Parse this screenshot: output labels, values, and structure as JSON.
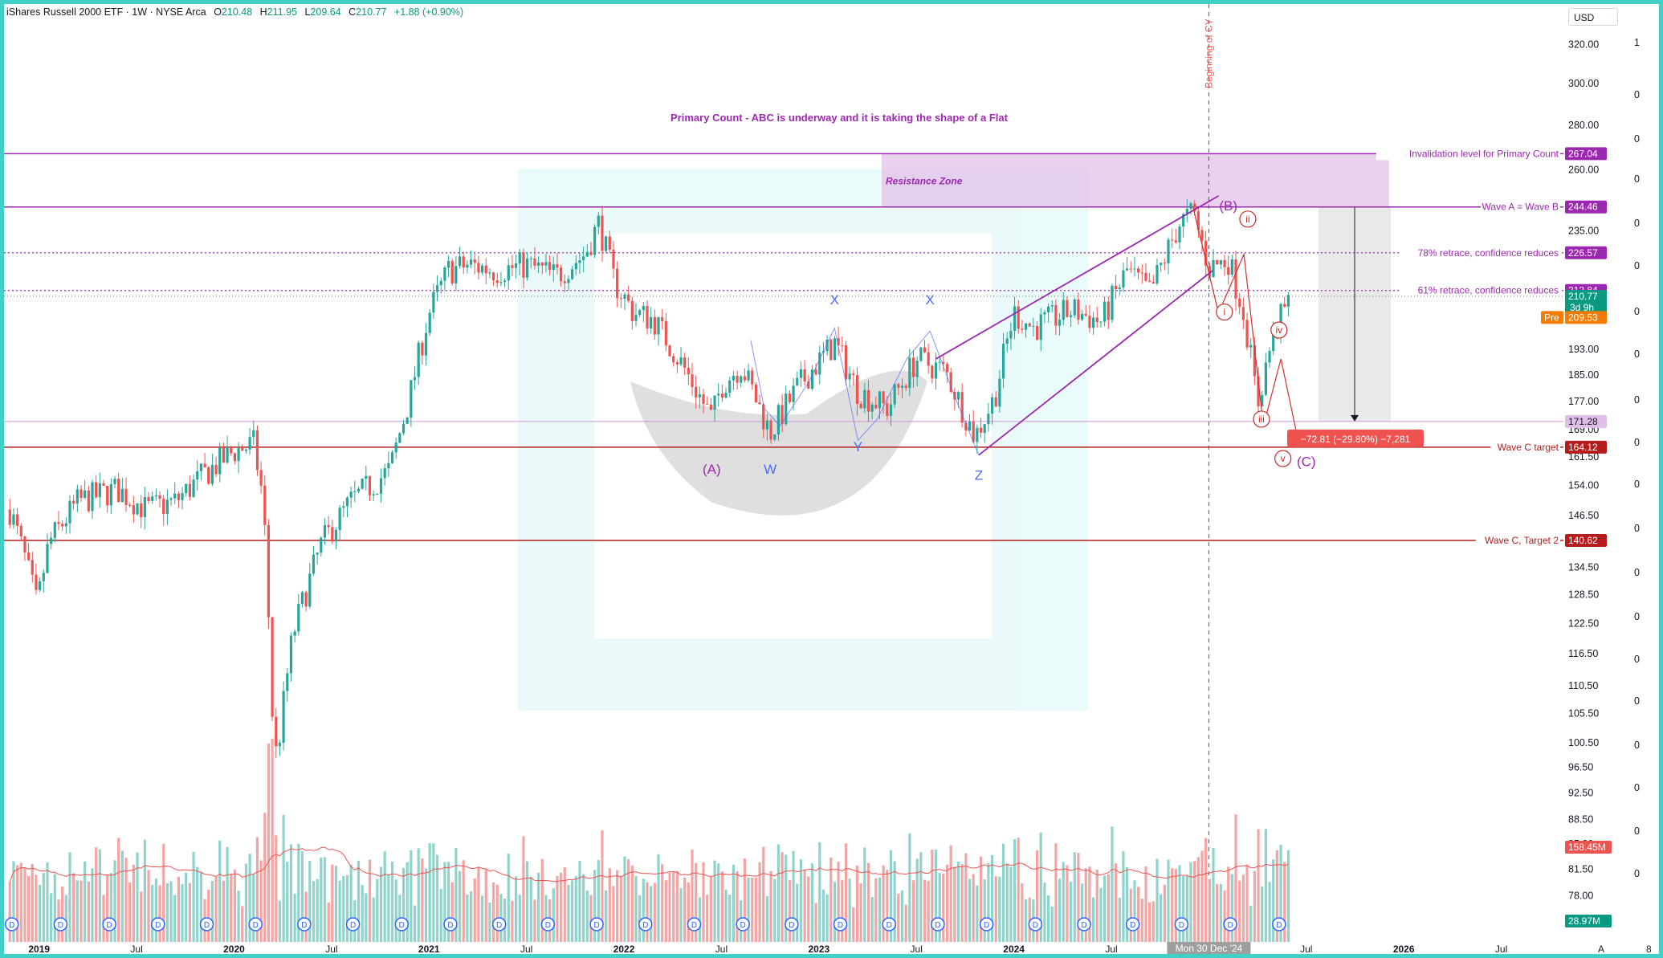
{
  "header": {
    "symbol": "iShares Russell 2000 ETF · 1W · NYSE Arca",
    "open_label": "O",
    "open": "210.48",
    "high_label": "H",
    "high": "211.95",
    "low_label": "L",
    "low": "209.64",
    "close_label": "C",
    "close": "210.77",
    "change": "+1.88 (+0.90%)",
    "currency": "USD"
  },
  "colors": {
    "up": "#26a69a",
    "down": "#ef5350",
    "purple": "#9c27b0",
    "resistance_fill": "#e1bee7",
    "dark_red": "#b71c1c",
    "blue_wave": "#4a6cf7"
  },
  "chart_data": {
    "type": "candlestick",
    "y_scale": "log",
    "ylim": [
      74,
      340
    ],
    "y_ticks": [
      "320.00",
      "300.00",
      "280.00",
      "260.00",
      "235.00",
      "193.00",
      "185.00",
      "177.00",
      "169.00",
      "161.50",
      "154.00",
      "146.50",
      "140.62",
      "134.50",
      "128.50",
      "122.50",
      "116.50",
      "110.50",
      "105.50",
      "100.50",
      "96.50",
      "92.50",
      "88.50",
      "85.00",
      "81.50",
      "78.00"
    ],
    "y_tick_values": [
      320,
      300,
      280,
      260,
      235,
      193,
      185,
      177,
      169,
      161.5,
      154,
      146.5,
      140.62,
      134.5,
      128.5,
      122.5,
      116.5,
      110.5,
      105.5,
      100.5,
      96.5,
      92.5,
      88.5,
      85,
      81.5,
      78
    ],
    "x_ticks": [
      {
        "label": "2019",
        "t": 2019.0,
        "year": true
      },
      {
        "label": "Jul",
        "t": 2019.5
      },
      {
        "label": "2020",
        "t": 2020.0,
        "year": true
      },
      {
        "label": "Jul",
        "t": 2020.5
      },
      {
        "label": "2021",
        "t": 2021.0,
        "year": true
      },
      {
        "label": "Jul",
        "t": 2021.5
      },
      {
        "label": "2022",
        "t": 2022.0,
        "year": true
      },
      {
        "label": "Jul",
        "t": 2022.5
      },
      {
        "label": "2023",
        "t": 2023.0,
        "year": true
      },
      {
        "label": "Jul",
        "t": 2023.5
      },
      {
        "label": "2024",
        "t": 2024.0,
        "year": true
      },
      {
        "label": "Jul",
        "t": 2024.5
      },
      {
        "label": "Jul",
        "t": 2025.5
      },
      {
        "label": "2026",
        "t": 2026.0,
        "year": true
      },
      {
        "label": "Jul",
        "t": 2026.5
      }
    ],
    "cursor_date": "Mon 30 Dec '24",
    "price_path": [
      [
        2018.85,
        148
      ],
      [
        2018.93,
        136
      ],
      [
        2018.99,
        126
      ],
      [
        2019.05,
        140
      ],
      [
        2019.2,
        150
      ],
      [
        2019.4,
        153
      ],
      [
        2019.55,
        148
      ],
      [
        2019.7,
        150
      ],
      [
        2019.85,
        157
      ],
      [
        2020.0,
        163
      ],
      [
        2020.1,
        165
      ],
      [
        2020.15,
        150
      ],
      [
        2020.2,
        102
      ],
      [
        2020.22,
        98
      ],
      [
        2020.3,
        120
      ],
      [
        2020.45,
        140
      ],
      [
        2020.6,
        150
      ],
      [
        2020.8,
        158
      ],
      [
        2020.9,
        178
      ],
      [
        2021.0,
        205
      ],
      [
        2021.1,
        220
      ],
      [
        2021.2,
        222
      ],
      [
        2021.35,
        220
      ],
      [
        2021.5,
        222
      ],
      [
        2021.65,
        218
      ],
      [
        2021.8,
        226
      ],
      [
        2021.87,
        238
      ],
      [
        2021.95,
        216
      ],
      [
        2022.05,
        205
      ],
      [
        2022.15,
        203
      ],
      [
        2022.3,
        188
      ],
      [
        2022.45,
        172
      ],
      [
        2022.5,
        182
      ],
      [
        2022.6,
        188
      ],
      [
        2022.75,
        168
      ],
      [
        2022.9,
        182
      ],
      [
        2023.08,
        195
      ],
      [
        2023.2,
        180
      ],
      [
        2023.35,
        175
      ],
      [
        2023.5,
        190
      ],
      [
        2023.65,
        186
      ],
      [
        2023.8,
        167
      ],
      [
        2023.9,
        178
      ],
      [
        2024.0,
        205
      ],
      [
        2024.1,
        200
      ],
      [
        2024.3,
        206
      ],
      [
        2024.45,
        202
      ],
      [
        2024.58,
        220
      ],
      [
        2024.7,
        212
      ],
      [
        2024.85,
        238
      ],
      [
        2024.92,
        242
      ],
      [
        2025.0,
        221
      ],
      [
        2025.1,
        224
      ],
      [
        2025.18,
        205
      ],
      [
        2025.25,
        176
      ],
      [
        2025.33,
        198
      ],
      [
        2025.42,
        210
      ]
    ],
    "volume_label": "158.45M",
    "volume_avg_label": "28.97M",
    "levels": [
      {
        "label": "Invalidation level for Primary Count",
        "value": "267.04",
        "price": 267.04,
        "color": "#9c27b0",
        "style": "solid"
      },
      {
        "label": "Wave A = Wave B",
        "value": "244.46",
        "price": 244.46,
        "color": "#9c27b0",
        "style": "solid"
      },
      {
        "label": "78% retrace, confidence reduces",
        "value": "226.57",
        "price": 226.57,
        "color": "#9c27b0",
        "style": "dotted"
      },
      {
        "label": "61% retrace, confidence reduces",
        "value": "212.84",
        "price": 212.84,
        "color": "#9c27b0",
        "style": "dotted"
      },
      {
        "label": "Wave C target",
        "value": "164.12",
        "price": 164.12,
        "color": "#b71c1c",
        "style": "solid"
      },
      {
        "label": "Wave C, Target 2",
        "value": "140.62",
        "price": 140.62,
        "color": "#b71c1c",
        "style": "solid"
      }
    ],
    "price_tags": [
      {
        "value": "210.77",
        "sub": "3d 9h",
        "price": 210.77,
        "color": "#089981"
      },
      {
        "value": "209.53",
        "prefix": "Pre",
        "price": 203.5,
        "color": "#f57c00"
      },
      {
        "value": "171.28",
        "price": 171.28,
        "color": "#e1bee7"
      }
    ],
    "annotations": {
      "title": "Primary Count - ABC is underway and it is taking the shape of a Flat",
      "resistance": "Resistance Zone",
      "vertical": "Beginning of CY",
      "measure": "−72.81 (−29.80%) −7,281",
      "wave_labels": [
        {
          "text": "(A)",
          "t": 2022.45,
          "p": 157,
          "color": "#9c27b0"
        },
        {
          "text": "W",
          "t": 2022.75,
          "p": 157,
          "color": "#4a6cf7"
        },
        {
          "text": "X",
          "t": 2023.08,
          "p": 208,
          "color": "#4a6cf7"
        },
        {
          "text": "Y",
          "t": 2023.2,
          "p": 163,
          "color": "#4a6cf7"
        },
        {
          "text": "X",
          "t": 2023.57,
          "p": 208,
          "color": "#4a6cf7"
        },
        {
          "text": "Z",
          "t": 2023.82,
          "p": 155.5,
          "color": "#4a6cf7"
        },
        {
          "text": "(B)",
          "t": 2025.1,
          "p": 243,
          "color": "#9c27b0"
        },
        {
          "text": "(C)",
          "t": 2025.5,
          "p": 159,
          "color": "#9c27b0"
        }
      ],
      "circled_labels": [
        {
          "text": "ii",
          "t": 2025.2,
          "p": 238
        },
        {
          "text": "i",
          "t": 2025.08,
          "p": 204
        },
        {
          "text": "iv",
          "t": 2025.36,
          "p": 198
        },
        {
          "text": "iii",
          "t": 2025.27,
          "p": 170.8
        },
        {
          "text": "v",
          "t": 2025.38,
          "p": 160
        }
      ],
      "footer_letter": "A",
      "footer_number": "8"
    }
  }
}
